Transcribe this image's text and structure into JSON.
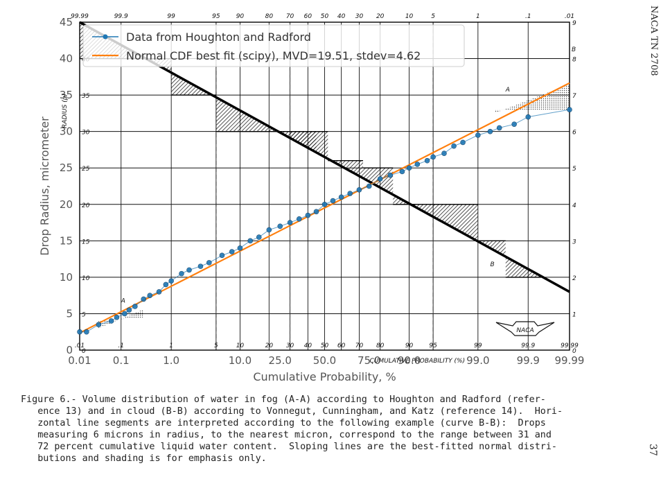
{
  "figure": {
    "caption": "Figure 6.- Volume distribution of water in fog (A-A) according to Houghton and Radford (refer-\n   ence 13) and in cloud (B-B) according to Vonnegut, Cunningham, and Katz (reference 14).  Hori-\n   zontal line segments are interpreted according to the following example (curve B-B):  Drops\n   measuring 6 microns in radius, to the nearest micron, correspond to the range between 31 and\n   72 percent cumulative liquid water content.  Sloping lines are the best-fitted normal distri-\n   butions and shading is for emphasis only.",
    "side_note": "NACA TN 2708",
    "page_number": "37",
    "naca_logo_text": "NACA"
  },
  "chart_data": {
    "type": "scatter",
    "xscale": "probability",
    "xlabel": "Cumulative Probability, %",
    "ylabel": "Drop Radius, micrometer",
    "ylabel_inner": "RADIUS (μ)",
    "xlabel_inner": "CUMULATIVE PROBABILITY (%)",
    "xlim": [
      0.01,
      99.99
    ],
    "ylim": [
      0,
      45
    ],
    "x_tick_labels": [
      "0.01",
      "0.1",
      "1.0",
      "10.0",
      "25.0",
      "50.0",
      "75.0",
      "90.0",
      "99.0",
      "99.9",
      "99.99"
    ],
    "x_ticks": [
      0.01,
      0.1,
      1,
      10,
      25,
      50,
      75,
      90,
      99,
      99.9,
      99.99
    ],
    "y_ticks": [
      0,
      5,
      10,
      15,
      20,
      25,
      30,
      35,
      40,
      45
    ],
    "y_tick_labels": [
      "0",
      "5",
      "10",
      "15",
      "20",
      "25",
      "30",
      "35",
      "40",
      "45"
    ],
    "inner_y_tick_labels": [
      "0",
      "5",
      "10",
      "15",
      "20",
      "25",
      "30",
      "35",
      "40"
    ],
    "top_tick_labels": [
      "99.99",
      "99.9",
      "99",
      "95",
      "90",
      "80",
      "70",
      "60",
      "50",
      "40",
      "30",
      "20",
      "10",
      "5",
      "1",
      ".1",
      ".01"
    ],
    "top_ticks": [
      0.01,
      0.1,
      1,
      5,
      10,
      20,
      30,
      40,
      50,
      60,
      70,
      80,
      90,
      95,
      99,
      99.9,
      99.99
    ],
    "bottom_inner_tick_labels": [
      ".01",
      ".1",
      "1",
      "5",
      "10",
      "20",
      "30",
      "40",
      "50",
      "60",
      "70",
      "80",
      "90",
      "95",
      "99",
      "99.9",
      "99.99"
    ],
    "right_tick_labels": [
      "0",
      "1",
      "2",
      "3",
      "4",
      "5",
      "6",
      "7",
      "8",
      "9"
    ],
    "grid": true,
    "legend_position": "top-left",
    "legend": [
      "Data from Houghton and Radford",
      "Normal CDF best fit (scipy), MVD=19.51, stdev=4.62"
    ],
    "curve_labels": [
      "A",
      "A",
      "B",
      "B"
    ],
    "series": [
      {
        "name": "Data from Houghton and Radford",
        "color": "#1f77b4",
        "x": [
          0.01,
          0.015,
          0.03,
          0.06,
          0.08,
          0.12,
          0.15,
          0.2,
          0.3,
          0.4,
          0.6,
          0.8,
          1.0,
          1.5,
          2.0,
          3.0,
          4.0,
          6.0,
          8.0,
          10.0,
          13.0,
          16.0,
          20.0,
          25.0,
          30.0,
          35.0,
          40.0,
          45.0,
          50.0,
          55.0,
          60.0,
          65.0,
          70.0,
          75.0,
          80.0,
          84.0,
          88.0,
          90.0,
          92.0,
          94.0,
          95.0,
          96.5,
          97.5,
          98.2,
          99.0,
          99.4,
          99.6,
          99.8,
          99.9,
          99.99
        ],
        "y": [
          2.5,
          2.5,
          3.5,
          4.0,
          4.5,
          5.0,
          5.5,
          6.0,
          7.0,
          7.5,
          8.0,
          9.0,
          9.5,
          10.5,
          11.0,
          11.5,
          12.0,
          13.0,
          13.5,
          14.0,
          15.0,
          15.5,
          16.5,
          17.0,
          17.5,
          18.0,
          18.5,
          19.0,
          20.0,
          20.5,
          21.0,
          21.5,
          22.0,
          22.5,
          23.5,
          24.0,
          24.5,
          25.0,
          25.5,
          26.0,
          26.5,
          27.0,
          28.0,
          28.5,
          29.5,
          30.0,
          30.5,
          31.0,
          32.0,
          33.0
        ]
      },
      {
        "name": "Normal CDF best fit (scipy), MVD=19.51, stdev=4.62",
        "color": "#ff7f0e",
        "mean": 19.51,
        "stdev": 4.62
      }
    ]
  }
}
